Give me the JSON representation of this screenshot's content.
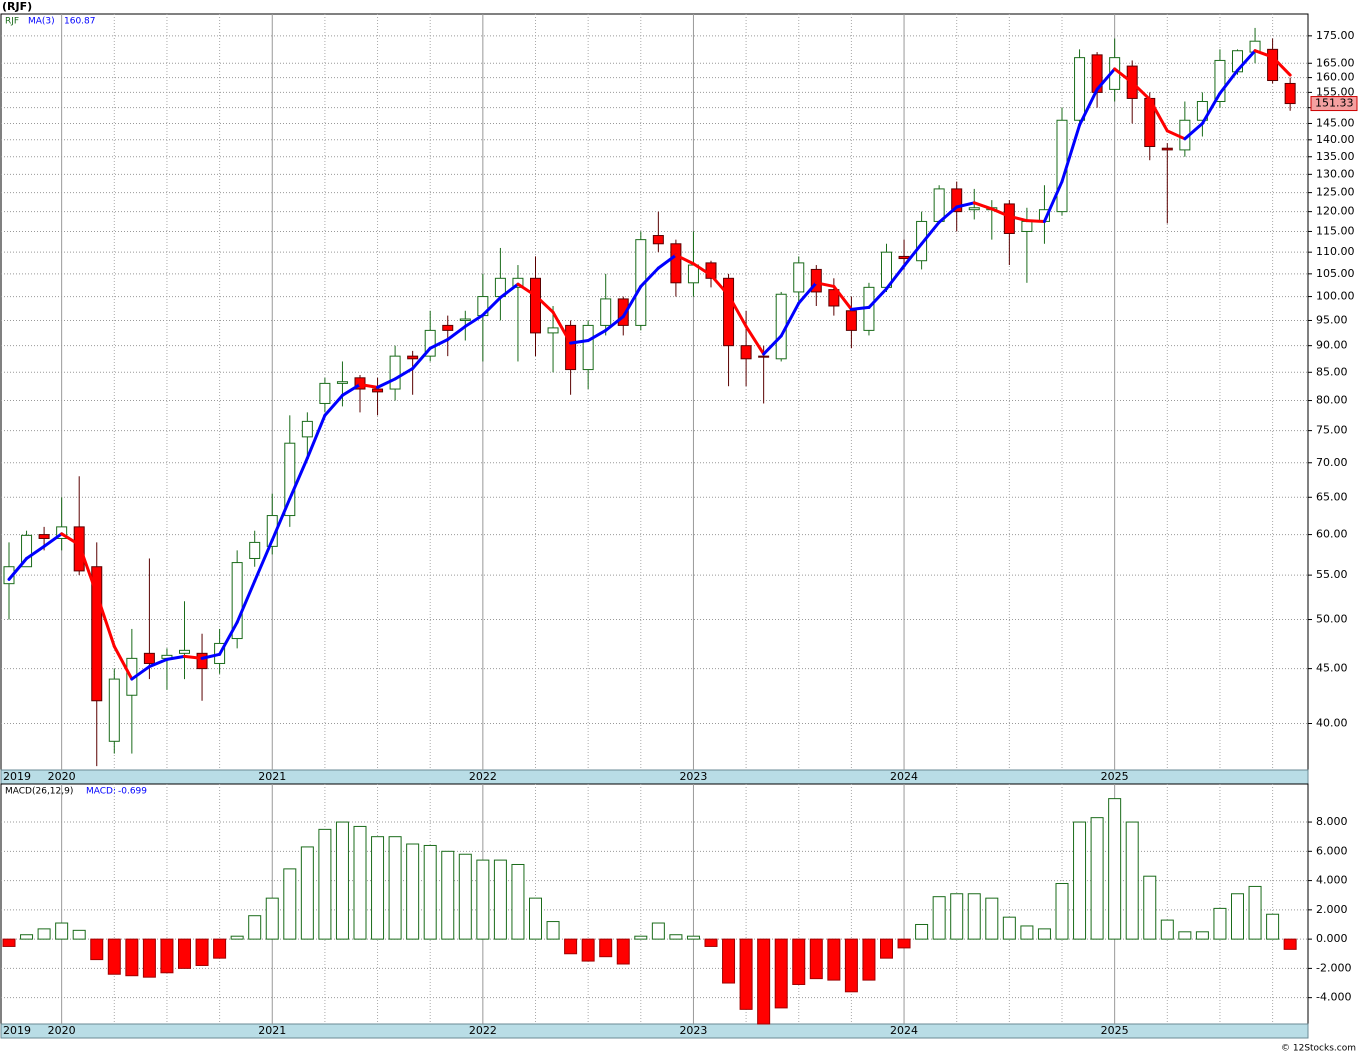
{
  "title": "(RJF)",
  "footer": "© 12Stocks.com",
  "chart_data": [
    {
      "type": "candlestick",
      "symbol": "RJF",
      "log_scale": true,
      "grid": true,
      "up_color": "#1a6b1a",
      "down_color": "#ff0000",
      "ylim": [
        36.2,
        183.4
      ],
      "yticks": [
        {
          "value": 40,
          "label": "40.00"
        },
        {
          "value": 45,
          "label": "45.00"
        },
        {
          "value": 50,
          "label": "50.00"
        },
        {
          "value": 55,
          "label": "55.00"
        },
        {
          "value": 60,
          "label": "60.00"
        },
        {
          "value": 65,
          "label": "65.00"
        },
        {
          "value": 70,
          "label": "70.00"
        },
        {
          "value": 75,
          "label": "75.00"
        },
        {
          "value": 80,
          "label": "80.00"
        },
        {
          "value": 85,
          "label": "85.00"
        },
        {
          "value": 90,
          "label": "90.00"
        },
        {
          "value": 95,
          "label": "95.00"
        },
        {
          "value": 100,
          "label": "100.00"
        },
        {
          "value": 105,
          "label": "105.00"
        },
        {
          "value": 110,
          "label": "110.00"
        },
        {
          "value": 115,
          "label": "115.00"
        },
        {
          "value": 120,
          "label": "120.00"
        },
        {
          "value": 125,
          "label": "125.00"
        },
        {
          "value": 130,
          "label": "130.00"
        },
        {
          "value": 135,
          "label": "135.00"
        },
        {
          "value": 140,
          "label": "140.00"
        },
        {
          "value": 145,
          "label": "145.00"
        },
        {
          "value": 150,
          "label": "150.00"
        },
        {
          "value": 155,
          "label": "155.00"
        },
        {
          "value": 160,
          "label": "160.00"
        },
        {
          "value": 165,
          "label": "165.00"
        },
        {
          "value": 175,
          "label": "175.00"
        }
      ],
      "categories": [
        "2019",
        null,
        null,
        "2020",
        null,
        null,
        null,
        null,
        null,
        null,
        null,
        null,
        null,
        null,
        null,
        "2021",
        null,
        null,
        null,
        null,
        null,
        null,
        null,
        null,
        null,
        null,
        null,
        "2022",
        null,
        null,
        null,
        null,
        null,
        null,
        null,
        null,
        null,
        null,
        null,
        "2023",
        null,
        null,
        null,
        null,
        null,
        null,
        null,
        null,
        null,
        null,
        null,
        "2024",
        null,
        null,
        null,
        null,
        null,
        null,
        null,
        null,
        null,
        null,
        null,
        "2025",
        null,
        null,
        null,
        null,
        null,
        null,
        null,
        null,
        null,
        null
      ],
      "open": [
        54,
        56,
        60,
        59.5,
        61,
        56,
        38.5,
        42.5,
        46.5,
        46,
        46.5,
        46.5,
        45.5,
        48,
        57,
        58.5,
        62.5,
        74,
        79.5,
        83,
        84,
        82,
        82,
        88,
        88,
        94,
        95,
        96,
        100,
        102,
        104,
        92.5,
        94,
        85.5,
        94,
        99.5,
        94,
        114,
        112,
        103,
        107.5,
        104,
        90,
        88,
        87.5,
        101,
        106,
        101.5,
        97,
        93,
        102,
        109,
        108,
        117.5,
        126,
        120.5,
        120.5,
        122,
        115,
        117.5,
        120,
        146,
        168,
        156,
        164,
        153,
        137.5,
        137,
        146,
        152,
        162,
        169,
        170,
        158
      ],
      "high": [
        59,
        60.5,
        61,
        65,
        68,
        59,
        45,
        49,
        57,
        47,
        52,
        48.5,
        49,
        58,
        60.5,
        65.5,
        77.5,
        78,
        84,
        87,
        84.5,
        84,
        90,
        89,
        97,
        96,
        97,
        105,
        111,
        107,
        109,
        98,
        95,
        95,
        105,
        100,
        115,
        120,
        113,
        115,
        108,
        105,
        97,
        90,
        101,
        109,
        107,
        104,
        100,
        103,
        112,
        113,
        120,
        127,
        128,
        126,
        123,
        123,
        121,
        127,
        150,
        170,
        169,
        174,
        166,
        155,
        139,
        152,
        155,
        170,
        170,
        178,
        174,
        160
      ],
      "low": [
        50,
        56,
        58,
        58,
        55,
        36.5,
        37.5,
        37.5,
        44,
        43,
        44,
        42,
        44.5,
        47,
        56,
        57.5,
        61,
        71,
        78,
        79,
        78,
        77.5,
        80,
        81,
        87,
        88,
        91,
        87,
        95,
        87,
        88,
        85,
        81,
        82,
        92,
        92,
        93,
        110,
        100,
        100,
        102,
        82.5,
        82.5,
        79.5,
        87,
        99,
        98,
        96,
        89.5,
        92,
        101,
        106,
        106,
        117,
        115,
        118,
        113,
        107,
        103,
        112,
        119,
        145,
        150,
        152,
        145,
        134,
        117,
        135,
        141,
        150,
        161,
        165,
        158,
        149
      ],
      "close": [
        56,
        59.9,
        59.5,
        61,
        55.5,
        42,
        44,
        46,
        45.5,
        46.3,
        46.8,
        45,
        47.5,
        56.5,
        59,
        62.5,
        73,
        76.5,
        83,
        83.3,
        82,
        81.5,
        88,
        87.5,
        93,
        93,
        95.3,
        100,
        104,
        104,
        92.5,
        93.5,
        85.5,
        94,
        99.5,
        94,
        113,
        112,
        103,
        107,
        104,
        90,
        87.5,
        87.8,
        100.5,
        107.5,
        101,
        98,
        93,
        102,
        110,
        108.5,
        117.5,
        126,
        120,
        121,
        121,
        114.5,
        117.5,
        120.5,
        146,
        167,
        155,
        167,
        153,
        138,
        137,
        146,
        152,
        166,
        169.5,
        173,
        159,
        151.33
      ],
      "series": [
        {
          "name": "MA(3)",
          "color": "#0000ff",
          "down_color": "#ff0000",
          "values": [
            54.5,
            57,
            58.5,
            60.1,
            58.7,
            52.8,
            47.2,
            44,
            45.2,
            45.9,
            46.2,
            46,
            46.4,
            49.7,
            54.3,
            59.3,
            64.8,
            70.7,
            77.5,
            80.9,
            82.8,
            82.3,
            83.8,
            85.7,
            89.5,
            91.2,
            93.8,
            96.1,
            99.8,
            102.7,
            100.2,
            96.7,
            90.5,
            91,
            93,
            95.8,
            102.2,
            106.3,
            109.3,
            107.3,
            104.7,
            100.3,
            93.8,
            88.4,
            91.9,
            98.6,
            103,
            102.2,
            97.3,
            97.7,
            101.7,
            106.8,
            112,
            117.3,
            121.2,
            122.3,
            120.7,
            118.8,
            117.7,
            117.5,
            128,
            144.5,
            156,
            163,
            158.3,
            152.7,
            142.7,
            140.3,
            145,
            154.7,
            162.5,
            169.5,
            167.2,
            160.87
          ]
        }
      ]
    },
    {
      "type": "bar",
      "title": "MACD(26,12,9)",
      "value_name": "MACD:",
      "value_color": "#0000ff",
      "grid": true,
      "up_color": "#1a6b1a",
      "down_color": "#ff0000",
      "ylim": [
        -5.8,
        10.6
      ],
      "yticks": [
        {
          "value": 8,
          "label": "8.000"
        },
        {
          "value": 6,
          "label": "6.000"
        },
        {
          "value": 4,
          "label": "4.000"
        },
        {
          "value": 2,
          "label": "2.000"
        },
        {
          "value": 0,
          "label": "0.000"
        },
        {
          "value": -2,
          "label": "-2.000"
        },
        {
          "value": -4,
          "label": "-4.000"
        }
      ],
      "categories": [
        "2019",
        null,
        null,
        "2020",
        null,
        null,
        null,
        null,
        null,
        null,
        null,
        null,
        null,
        null,
        null,
        "2021",
        null,
        null,
        null,
        null,
        null,
        null,
        null,
        null,
        null,
        null,
        null,
        "2022",
        null,
        null,
        null,
        null,
        null,
        null,
        null,
        null,
        null,
        null,
        null,
        "2023",
        null,
        null,
        null,
        null,
        null,
        null,
        null,
        null,
        null,
        null,
        null,
        "2024",
        null,
        null,
        null,
        null,
        null,
        null,
        null,
        null,
        null,
        null,
        null,
        "2025",
        null,
        null,
        null,
        null,
        null,
        null,
        null,
        null,
        null,
        null
      ],
      "values": [
        -0.5,
        0.3,
        0.7,
        1.1,
        0.6,
        -1.4,
        -2.4,
        -2.5,
        -2.6,
        -2.3,
        -2.0,
        -1.8,
        -1.3,
        0.2,
        1.6,
        2.8,
        4.8,
        6.3,
        7.5,
        8.0,
        7.7,
        7.0,
        7.0,
        6.5,
        6.4,
        6.0,
        5.8,
        5.4,
        5.4,
        5.1,
        2.8,
        1.2,
        -1.0,
        -1.5,
        -1.2,
        -1.7,
        0.2,
        1.1,
        0.3,
        0.2,
        -0.5,
        -3.0,
        -4.8,
        -5.8,
        -4.7,
        -3.1,
        -2.7,
        -2.8,
        -3.6,
        -2.8,
        -1.3,
        -0.6,
        1.0,
        2.9,
        3.1,
        3.1,
        2.8,
        1.5,
        0.9,
        0.7,
        3.8,
        8.0,
        8.3,
        9.6,
        8.0,
        4.3,
        1.3,
        0.5,
        0.5,
        2.1,
        3.1,
        3.6,
        1.7,
        -0.699
      ]
    }
  ]
}
